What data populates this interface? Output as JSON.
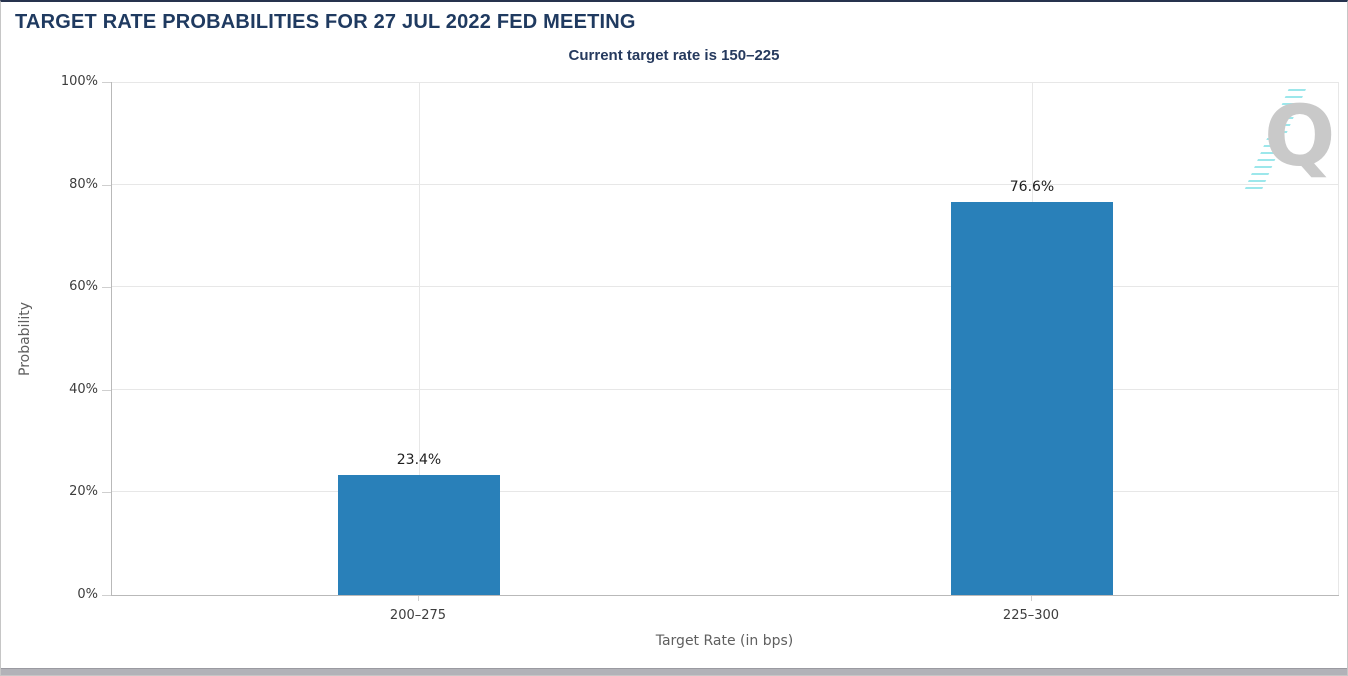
{
  "header": {
    "title": "TARGET RATE PROBABILITIES FOR 27 JUL 2022 FED MEETING",
    "subtitle": "Current target rate is 150–225"
  },
  "chart_data": {
    "type": "bar",
    "title": "TARGET RATE PROBABILITIES FOR 27 JUL 2022 FED MEETING",
    "subtitle": "Current target rate is 150–225",
    "categories": [
      "200–275",
      "225–300"
    ],
    "values": [
      23.4,
      76.6
    ],
    "value_labels": [
      "23.4%",
      "76.6%"
    ],
    "xlabel": "Target Rate (in bps)",
    "ylabel": "Probability",
    "ylim": [
      0,
      100
    ],
    "yticks": [
      0,
      20,
      40,
      60,
      80,
      100
    ],
    "ytick_labels": [
      "0%",
      "20%",
      "40%",
      "60%",
      "80%",
      "100%"
    ],
    "grid": true,
    "legend_position": "none",
    "bar_color": "#2980b9"
  },
  "watermark": {
    "letter": "Q",
    "letter_color": "#c9c9c9",
    "stripe_color": "#9ce7eb"
  }
}
